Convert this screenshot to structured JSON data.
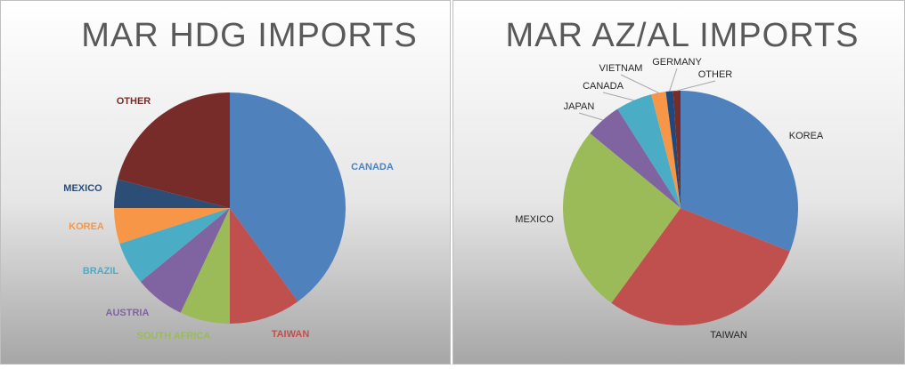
{
  "chart_data": [
    {
      "type": "pie",
      "title": "MAR HDG IMPORTS",
      "categories": [
        "CANADA",
        "TAIWAN",
        "SOUTH AFRICA",
        "AUSTRIA",
        "BRAZIL",
        "KOREA",
        "MEXICO",
        "OTHER"
      ],
      "values": [
        40,
        10,
        7,
        7,
        6,
        5,
        4,
        21
      ],
      "colors": [
        "#4f81bd",
        "#c0504d",
        "#9bbb59",
        "#8064a2",
        "#4bacc6",
        "#f79646",
        "#2c4d75",
        "#772c2a"
      ]
    },
    {
      "type": "pie",
      "title": "MAR AZ/AL IMPORTS",
      "categories": [
        "KOREA",
        "TAIWAN",
        "MEXICO",
        "JAPAN",
        "CANADA",
        "VIETNAM",
        "GERMANY",
        "OTHER"
      ],
      "values": [
        31,
        29,
        26,
        5,
        5,
        2,
        1,
        1
      ],
      "colors": [
        "#4f81bd",
        "#c0504d",
        "#9bbb59",
        "#8064a2",
        "#4bacc6",
        "#f79646",
        "#1f497d",
        "#772c2a"
      ]
    }
  ]
}
